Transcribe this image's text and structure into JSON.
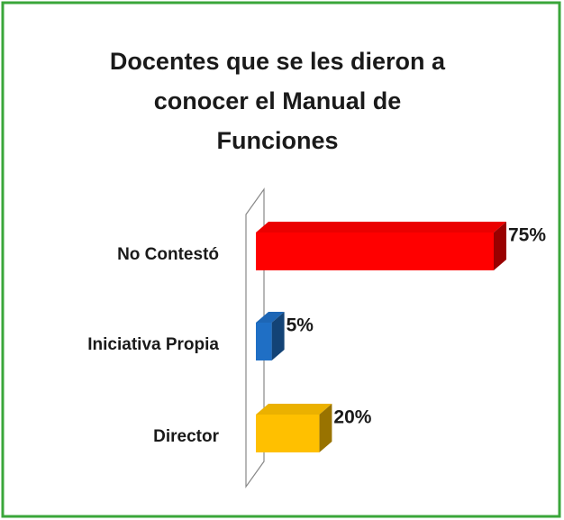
{
  "chart_data": {
    "type": "bar3d-horizontal",
    "title": [
      "Docentes que se les dieron a",
      "conocer el Manual de",
      "Funciones"
    ],
    "categories": [
      "No Contestó",
      "Iniciativa Propia",
      "Director"
    ],
    "values": [
      75,
      5,
      20
    ],
    "value_labels": [
      "75%",
      "5%",
      "20%"
    ],
    "colors": [
      "#ff0000",
      "#1f6fc5",
      "#ffc000"
    ]
  }
}
